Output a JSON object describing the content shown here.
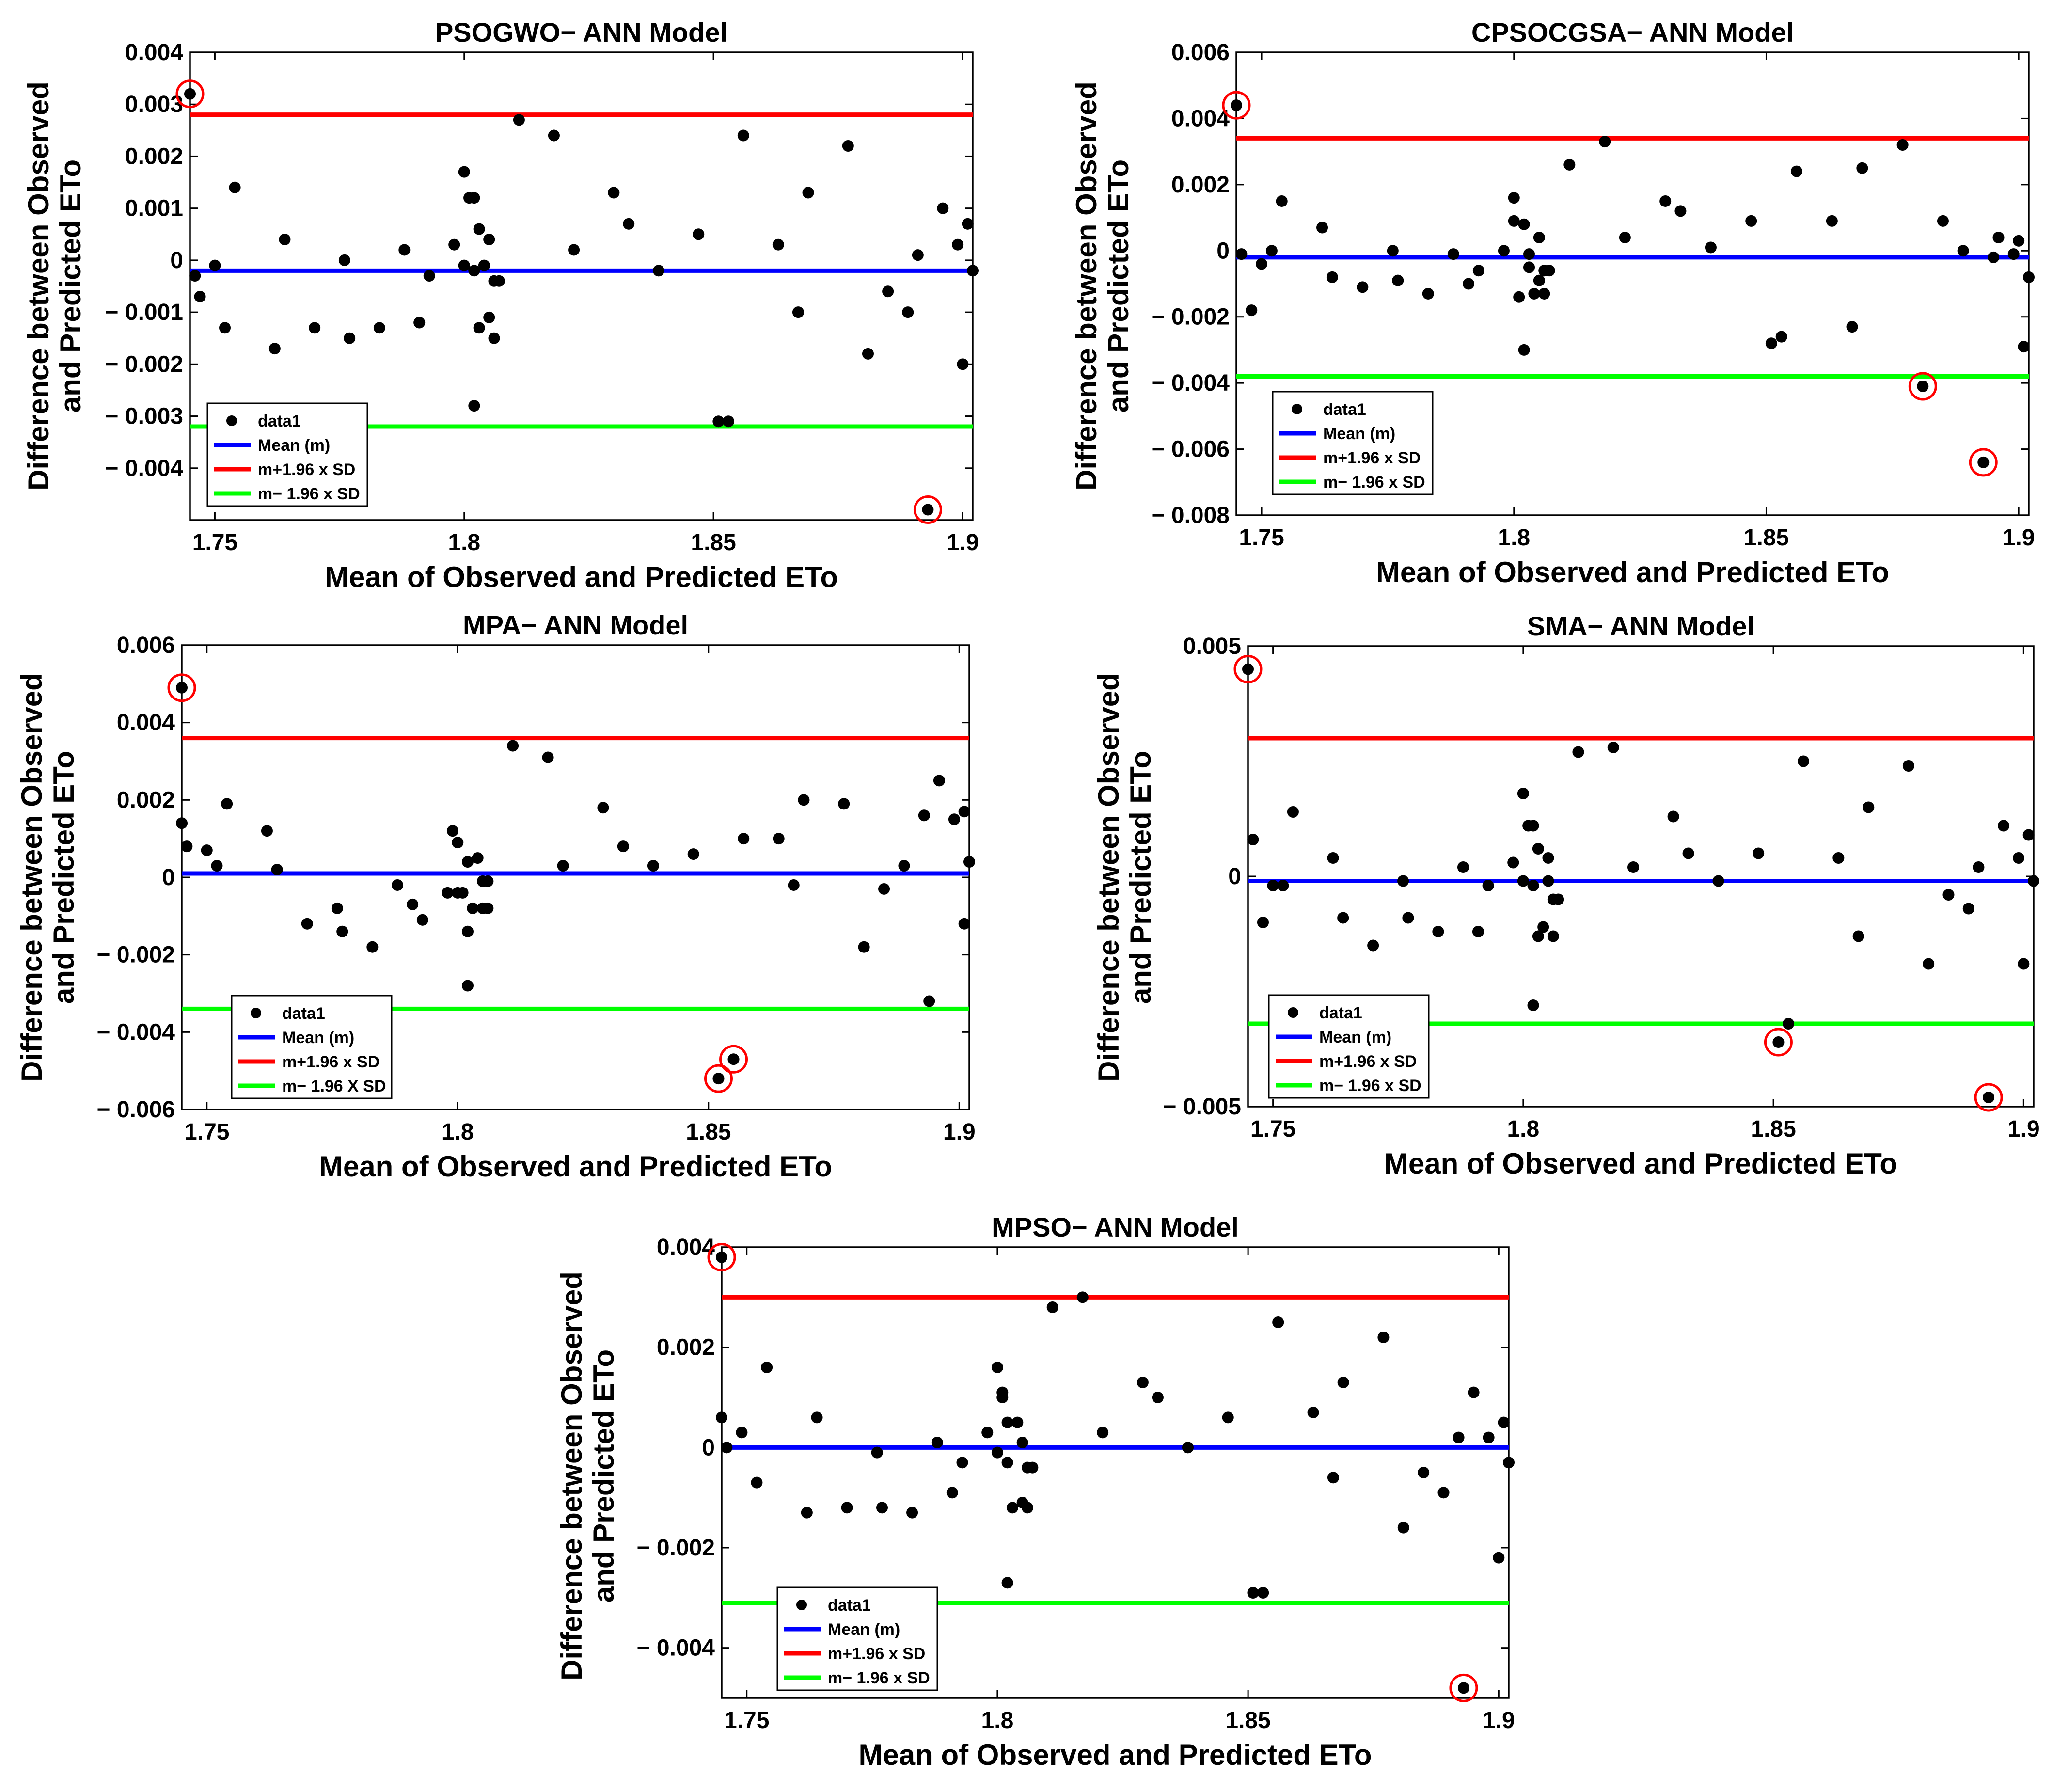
{
  "figure": {
    "colors": {
      "mean": "#0000ff",
      "upper": "#ff0000",
      "lower": "#00ff00",
      "points": "#000000",
      "outlier": "#ff0000"
    }
  },
  "chart_data": [
    {
      "type": "scatter",
      "title": "PSOGWO− ANN Model",
      "xlabel": "Mean of Observed and Predicted ETo",
      "ylabel": [
        "Difference between Observed",
        "and Predicted ETo"
      ],
      "xlim": [
        1.745,
        1.902
      ],
      "ylim": [
        -0.005,
        0.004
      ],
      "xticks": [
        1.75,
        1.8,
        1.85,
        1.9
      ],
      "xticklabels": [
        "1.75",
        "1.8",
        "1.85",
        "1.9"
      ],
      "yticks": [
        0.004,
        0.003,
        0.002,
        0.001,
        0,
        -0.001,
        -0.002,
        -0.003,
        -0.004
      ],
      "yticklabels": [
        "0.004",
        "0.003",
        "0.002",
        "0.001",
        "0",
        "− 0.001",
        "− 0.002",
        "− 0.003",
        "− 0.004"
      ],
      "legend": [
        "data1",
        "Mean (m)",
        "m+1.96 x SD",
        "m− 1.96 x SD"
      ],
      "lines": {
        "mean": -0.0002,
        "upper": 0.0028,
        "lower": -0.0032
      },
      "x": [
        1.745,
        1.746,
        1.747,
        1.75,
        1.752,
        1.754,
        1.762,
        1.764,
        1.77,
        1.776,
        1.777,
        1.783,
        1.788,
        1.791,
        1.793,
        1.798,
        1.8,
        1.8,
        1.801,
        1.802,
        1.802,
        1.802,
        1.803,
        1.803,
        1.804,
        1.805,
        1.805,
        1.806,
        1.806,
        1.807,
        1.811,
        1.818,
        1.822,
        1.83,
        1.833,
        1.839,
        1.847,
        1.851,
        1.853,
        1.856,
        1.863,
        1.867,
        1.869,
        1.877,
        1.881,
        1.885,
        1.889,
        1.891,
        1.893,
        1.896,
        1.899,
        1.9,
        1.901,
        1.902
      ],
      "y": [
        0.0032,
        -0.0003,
        -0.0007,
        -0.0001,
        -0.0013,
        0.0014,
        -0.0017,
        0.0004,
        -0.0013,
        0.0,
        -0.0015,
        -0.0013,
        0.0002,
        -0.0012,
        -0.0003,
        0.0003,
        0.0017,
        -0.0001,
        0.0012,
        0.0012,
        -0.0002,
        -0.0028,
        0.0006,
        -0.0013,
        -0.0001,
        -0.0011,
        0.0004,
        -0.0015,
        -0.0004,
        -0.0004,
        0.0027,
        0.0024,
        0.0002,
        0.0013,
        0.0007,
        -0.0002,
        0.0005,
        -0.0031,
        -0.0031,
        0.0024,
        0.0003,
        -0.001,
        0.0013,
        0.0022,
        -0.0018,
        -0.0006,
        -0.001,
        0.0001,
        -0.0048,
        0.001,
        0.0003,
        -0.002,
        0.0007,
        -0.0002
      ],
      "outliers": [
        {
          "x": 1.745,
          "y": 0.0032
        },
        {
          "x": 1.893,
          "y": -0.0048
        }
      ]
    },
    {
      "type": "scatter",
      "title": "CPSOCGSA− ANN Model",
      "xlabel": "Mean of Observed and Predicted ETo",
      "ylabel": [
        "Difference between Observed",
        "and Predicted ETo"
      ],
      "xlim": [
        1.745,
        1.902
      ],
      "ylim": [
        -0.008,
        0.006
      ],
      "xticks": [
        1.75,
        1.8,
        1.85,
        1.9
      ],
      "xticklabels": [
        "1.75",
        "1.8",
        "1.85",
        "1.9"
      ],
      "yticks": [
        0.006,
        0.004,
        0.002,
        0,
        -0.002,
        -0.004,
        -0.006,
        -0.008
      ],
      "yticklabels": [
        "0.006",
        "0.004",
        "0.002",
        "0",
        "− 0.002",
        "− 0.004",
        "− 0.006",
        "− 0.008"
      ],
      "legend": [
        "data1",
        "Mean (m)",
        "m+1.96 x SD",
        "m− 1.96 x SD"
      ],
      "lines": {
        "mean": -0.0002,
        "upper": 0.0034,
        "lower": -0.0038
      },
      "x": [
        1.745,
        1.746,
        1.748,
        1.75,
        1.752,
        1.754,
        1.762,
        1.764,
        1.77,
        1.776,
        1.777,
        1.783,
        1.788,
        1.791,
        1.793,
        1.798,
        1.8,
        1.8,
        1.801,
        1.802,
        1.802,
        1.803,
        1.803,
        1.804,
        1.805,
        1.805,
        1.806,
        1.806,
        1.807,
        1.811,
        1.818,
        1.822,
        1.83,
        1.833,
        1.839,
        1.847,
        1.851,
        1.853,
        1.856,
        1.863,
        1.867,
        1.869,
        1.877,
        1.881,
        1.885,
        1.889,
        1.893,
        1.895,
        1.896,
        1.899,
        1.9,
        1.901,
        1.902
      ],
      "y": [
        0.0044,
        -0.0001,
        -0.0018,
        -0.0004,
        0.0,
        0.0015,
        0.0007,
        -0.0008,
        -0.0011,
        0.0,
        -0.0009,
        -0.0013,
        -0.0001,
        -0.001,
        -0.0006,
        0.0,
        0.0016,
        0.0009,
        -0.0014,
        -0.003,
        0.0008,
        -0.0005,
        -0.0001,
        -0.0013,
        0.0004,
        -0.0009,
        -0.0006,
        -0.0013,
        -0.0006,
        0.0026,
        0.0033,
        0.0004,
        0.0015,
        0.0012,
        0.0001,
        0.0009,
        -0.0028,
        -0.0026,
        0.0024,
        0.0009,
        -0.0023,
        0.0025,
        0.0032,
        -0.0041,
        0.0009,
        0.0,
        -0.0064,
        -0.0002,
        0.0004,
        -0.0001,
        0.0003,
        -0.0029,
        -0.0008
      ],
      "outliers": [
        {
          "x": 1.745,
          "y": 0.0044
        },
        {
          "x": 1.881,
          "y": -0.0041
        },
        {
          "x": 1.893,
          "y": -0.0064
        }
      ]
    },
    {
      "type": "scatter",
      "title": "MPA− ANN Model",
      "xlabel": "Mean of Observed and Predicted ETo",
      "ylabel": [
        "Difference between Observed",
        "and Predicted ETo"
      ],
      "xlim": [
        1.745,
        1.902
      ],
      "ylim": [
        -0.006,
        0.006
      ],
      "xticks": [
        1.75,
        1.8,
        1.85,
        1.9
      ],
      "xticklabels": [
        "1.75",
        "1.8",
        "1.85",
        "1.9"
      ],
      "yticks": [
        0.006,
        0.004,
        0.002,
        0,
        -0.002,
        -0.004,
        -0.006
      ],
      "yticklabels": [
        "0.006",
        "0.004",
        "0.002",
        "0",
        "− 0.002",
        "− 0.004",
        "− 0.006"
      ],
      "legend": [
        "data1",
        "Mean (m)",
        "m+1.96 x SD",
        "m− 1.96 X SD"
      ],
      "lines": {
        "mean": 0.0001,
        "upper": 0.0036,
        "lower": -0.0034
      },
      "x": [
        1.745,
        1.745,
        1.746,
        1.75,
        1.752,
        1.754,
        1.762,
        1.764,
        1.77,
        1.776,
        1.777,
        1.783,
        1.788,
        1.791,
        1.793,
        1.798,
        1.799,
        1.8,
        1.8,
        1.801,
        1.802,
        1.802,
        1.802,
        1.803,
        1.804,
        1.805,
        1.805,
        1.806,
        1.806,
        1.811,
        1.818,
        1.821,
        1.829,
        1.833,
        1.839,
        1.847,
        1.852,
        1.855,
        1.857,
        1.864,
        1.867,
        1.869,
        1.877,
        1.881,
        1.885,
        1.889,
        1.893,
        1.894,
        1.896,
        1.899,
        1.901,
        1.901,
        1.902
      ],
      "y": [
        0.0049,
        0.0014,
        0.0008,
        0.0007,
        0.0003,
        0.0019,
        0.0012,
        0.0002,
        -0.0012,
        -0.0008,
        -0.0014,
        -0.0018,
        -0.0002,
        -0.0007,
        -0.0011,
        -0.0004,
        0.0012,
        0.0009,
        -0.0004,
        -0.0004,
        -0.0014,
        -0.0028,
        0.0004,
        -0.0008,
        0.0005,
        -0.0001,
        -0.0008,
        -0.0001,
        -0.0008,
        0.0034,
        0.0031,
        0.0003,
        0.0018,
        0.0008,
        0.0003,
        0.0006,
        -0.0052,
        -0.0047,
        0.001,
        0.001,
        -0.0002,
        0.002,
        0.0019,
        -0.0018,
        -0.0003,
        0.0003,
        0.0016,
        -0.0032,
        0.0025,
        0.0015,
        -0.0012,
        0.0017,
        0.0004
      ],
      "outliers": [
        {
          "x": 1.745,
          "y": 0.0049
        },
        {
          "x": 1.852,
          "y": -0.0052
        },
        {
          "x": 1.855,
          "y": -0.0047
        }
      ]
    },
    {
      "type": "scatter",
      "title": "SMA− ANN Model",
      "xlabel": "Mean of Observed and Predicted ETo",
      "ylabel": [
        "Difference between Observed",
        "and Predicted ETo"
      ],
      "xlim": [
        1.745,
        1.902
      ],
      "ylim": [
        -0.005,
        0.005
      ],
      "xticks": [
        1.75,
        1.8,
        1.85,
        1.9
      ],
      "xticklabels": [
        "1.75",
        "1.8",
        "1.85",
        "1.9"
      ],
      "yticks": [
        0.005,
        0,
        -0.005
      ],
      "yticklabels": [
        "0.005",
        "0",
        "− 0.005"
      ],
      "legend": [
        "data1",
        "Mean (m)",
        "m+1.96 x SD",
        "m− 1.96 x SD"
      ],
      "lines": {
        "mean": -0.0001,
        "upper": 0.003,
        "lower": -0.0032
      },
      "x": [
        1.745,
        1.746,
        1.748,
        1.75,
        1.752,
        1.754,
        1.762,
        1.764,
        1.77,
        1.776,
        1.777,
        1.783,
        1.788,
        1.791,
        1.793,
        1.798,
        1.8,
        1.8,
        1.801,
        1.802,
        1.802,
        1.802,
        1.803,
        1.803,
        1.804,
        1.805,
        1.805,
        1.806,
        1.806,
        1.807,
        1.811,
        1.818,
        1.822,
        1.83,
        1.833,
        1.839,
        1.847,
        1.851,
        1.853,
        1.856,
        1.863,
        1.867,
        1.869,
        1.877,
        1.881,
        1.885,
        1.889,
        1.891,
        1.893,
        1.896,
        1.899,
        1.9,
        1.901,
        1.902
      ],
      "y": [
        0.0045,
        0.0008,
        -0.001,
        -0.0002,
        -0.0002,
        0.0014,
        0.0004,
        -0.0009,
        -0.0015,
        -0.0001,
        -0.0009,
        -0.0012,
        0.0002,
        -0.0012,
        -0.0002,
        0.0003,
        0.0018,
        -0.0001,
        0.0011,
        0.0011,
        -0.0002,
        -0.0028,
        -0.0013,
        0.0006,
        -0.0011,
        -0.0001,
        0.0004,
        -0.0013,
        -0.0005,
        -0.0005,
        0.0027,
        0.0028,
        0.0002,
        0.0013,
        0.0005,
        -0.0001,
        0.0005,
        -0.0036,
        -0.0032,
        0.0025,
        0.0004,
        -0.0013,
        0.0015,
        0.0024,
        -0.0019,
        -0.0004,
        -0.0007,
        0.0002,
        -0.0048,
        0.0011,
        0.0004,
        -0.0019,
        0.0009,
        -0.0001
      ],
      "outliers": [
        {
          "x": 1.745,
          "y": 0.0045
        },
        {
          "x": 1.851,
          "y": -0.0036
        },
        {
          "x": 1.893,
          "y": -0.0048
        }
      ]
    },
    {
      "type": "scatter",
      "title": "MPSO− ANN Model",
      "xlabel": "Mean of Observed and Predicted ETo",
      "ylabel": [
        "Difference between Observed",
        "and Predicted ETo"
      ],
      "xlim": [
        1.745,
        1.902
      ],
      "ylim": [
        -0.005,
        0.004
      ],
      "xticks": [
        1.75,
        1.8,
        1.85,
        1.9
      ],
      "xticklabels": [
        "1.75",
        "1.8",
        "1.85",
        "1.9"
      ],
      "yticks": [
        0.004,
        0.002,
        0,
        -0.002,
        -0.004
      ],
      "yticklabels": [
        "0.004",
        "0.002",
        "0",
        "− 0.002",
        "− 0.004"
      ],
      "legend": [
        "data1",
        "Mean (m)",
        "m+1.96 x SD",
        "m− 1.96 x SD"
      ],
      "lines": {
        "mean": 0.0,
        "upper": 0.003,
        "lower": -0.0031
      },
      "x": [
        1.745,
        1.745,
        1.746,
        1.749,
        1.752,
        1.754,
        1.762,
        1.764,
        1.77,
        1.776,
        1.777,
        1.783,
        1.788,
        1.791,
        1.793,
        1.798,
        1.8,
        1.8,
        1.801,
        1.801,
        1.802,
        1.802,
        1.802,
        1.803,
        1.804,
        1.805,
        1.805,
        1.806,
        1.806,
        1.807,
        1.811,
        1.817,
        1.821,
        1.829,
        1.832,
        1.838,
        1.846,
        1.851,
        1.853,
        1.856,
        1.863,
        1.867,
        1.869,
        1.877,
        1.881,
        1.885,
        1.889,
        1.892,
        1.893,
        1.895,
        1.898,
        1.9,
        1.901,
        1.902
      ],
      "y": [
        0.0038,
        0.0006,
        0.0,
        0.0003,
        -0.0007,
        0.0016,
        -0.0013,
        0.0006,
        -0.0012,
        -0.0001,
        -0.0012,
        -0.0013,
        0.0001,
        -0.0009,
        -0.0003,
        0.0003,
        0.0016,
        -0.0001,
        0.001,
        0.0011,
        -0.0003,
        -0.0027,
        0.0005,
        -0.0012,
        0.0005,
        0.0001,
        -0.0011,
        -0.0004,
        -0.0012,
        -0.0004,
        0.0028,
        0.003,
        0.0003,
        0.0013,
        0.001,
        0.0,
        0.0006,
        -0.0029,
        -0.0029,
        0.0025,
        0.0007,
        -0.0006,
        0.0013,
        0.0022,
        -0.0016,
        -0.0005,
        -0.0009,
        0.0002,
        -0.0048,
        0.0011,
        0.0002,
        -0.0022,
        0.0005,
        -0.0003
      ],
      "outliers": [
        {
          "x": 1.745,
          "y": 0.0038
        },
        {
          "x": 1.893,
          "y": -0.0048
        }
      ]
    }
  ]
}
